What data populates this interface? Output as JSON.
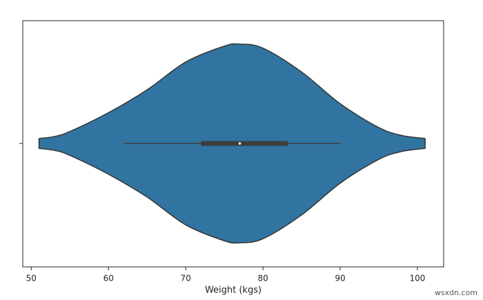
{
  "chart_data": {
    "type": "violin",
    "xlabel": "Weight (kgs)",
    "categories": [
      null
    ],
    "color": "#3274a1",
    "edge_color": "#333333",
    "xlim": [
      48.9,
      103.4
    ],
    "xticks": [
      50,
      60,
      70,
      80,
      90,
      100
    ],
    "kde": {
      "x": [
        51,
        53,
        55,
        60,
        65,
        70,
        75,
        77,
        80,
        85,
        90,
        95,
        98,
        101
      ],
      "density": [
        0.05,
        0.07,
        0.12,
        0.31,
        0.54,
        0.82,
        0.98,
        1.0,
        0.96,
        0.72,
        0.4,
        0.16,
        0.08,
        0.05
      ]
    },
    "box": {
      "whisker_low": 62,
      "q1": 72,
      "median": 77,
      "q3": 83.2,
      "whisker_high": 90
    }
  },
  "watermark": "wsxdn.com"
}
